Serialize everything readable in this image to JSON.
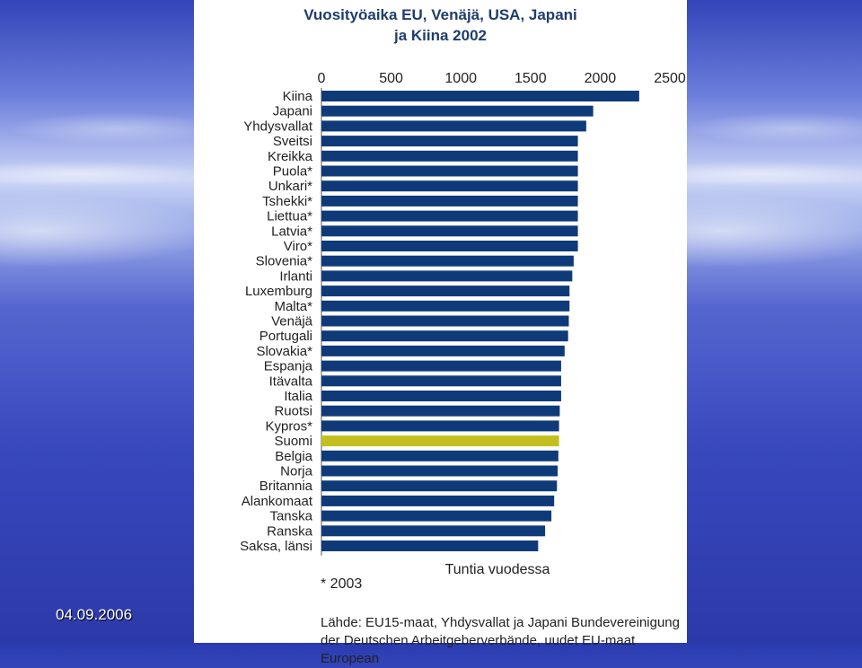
{
  "slide": {
    "date": "04.09.2006"
  },
  "chart_data": {
    "type": "bar",
    "orientation": "horizontal",
    "title_line1": "Vuosityöaika EU, Venäjä, USA, Japani",
    "title_line2": "ja Kiina 2002",
    "xlabel": "Tuntia vuodessa",
    "xlim": [
      0,
      2500
    ],
    "xticks": [
      "0",
      "500",
      "1000",
      "1500",
      "2000",
      "2500"
    ],
    "categories": [
      "Kiina",
      "Japani",
      "Yhdysvallat",
      "Sveitsi",
      "Kreikka",
      "Puola*",
      "Unkari*",
      "Tshekki*",
      "Liettua*",
      "Latvia*",
      "Viro*",
      "Slovenia*",
      "Irlanti",
      "Luxemburg",
      "Malta*",
      "Venäjä",
      "Portugali",
      "Slovakia*",
      "Espanja",
      "Itävalta",
      "Italia",
      "Ruotsi",
      "Kypros*",
      "Suomi",
      "Belgia",
      "Norja",
      "Britannia",
      "Alankomaat",
      "Tanska",
      "Ranska",
      "Saksa, länsi"
    ],
    "values": [
      2280,
      1950,
      1900,
      1840,
      1840,
      1840,
      1840,
      1840,
      1840,
      1840,
      1840,
      1810,
      1800,
      1780,
      1780,
      1775,
      1770,
      1745,
      1720,
      1720,
      1720,
      1710,
      1705,
      1705,
      1700,
      1695,
      1690,
      1670,
      1650,
      1605,
      1555
    ],
    "highlight": "Suomi",
    "bar_color": "#0f3a7a",
    "highlight_color": "#c2bf1e",
    "footnote": "* 2003",
    "source": "Lähde: EU15-maat, Yhdysvallat ja Japani Bundevereinigung der Deutschen Arbeitgeberverbände, uudet EU-maat European"
  }
}
